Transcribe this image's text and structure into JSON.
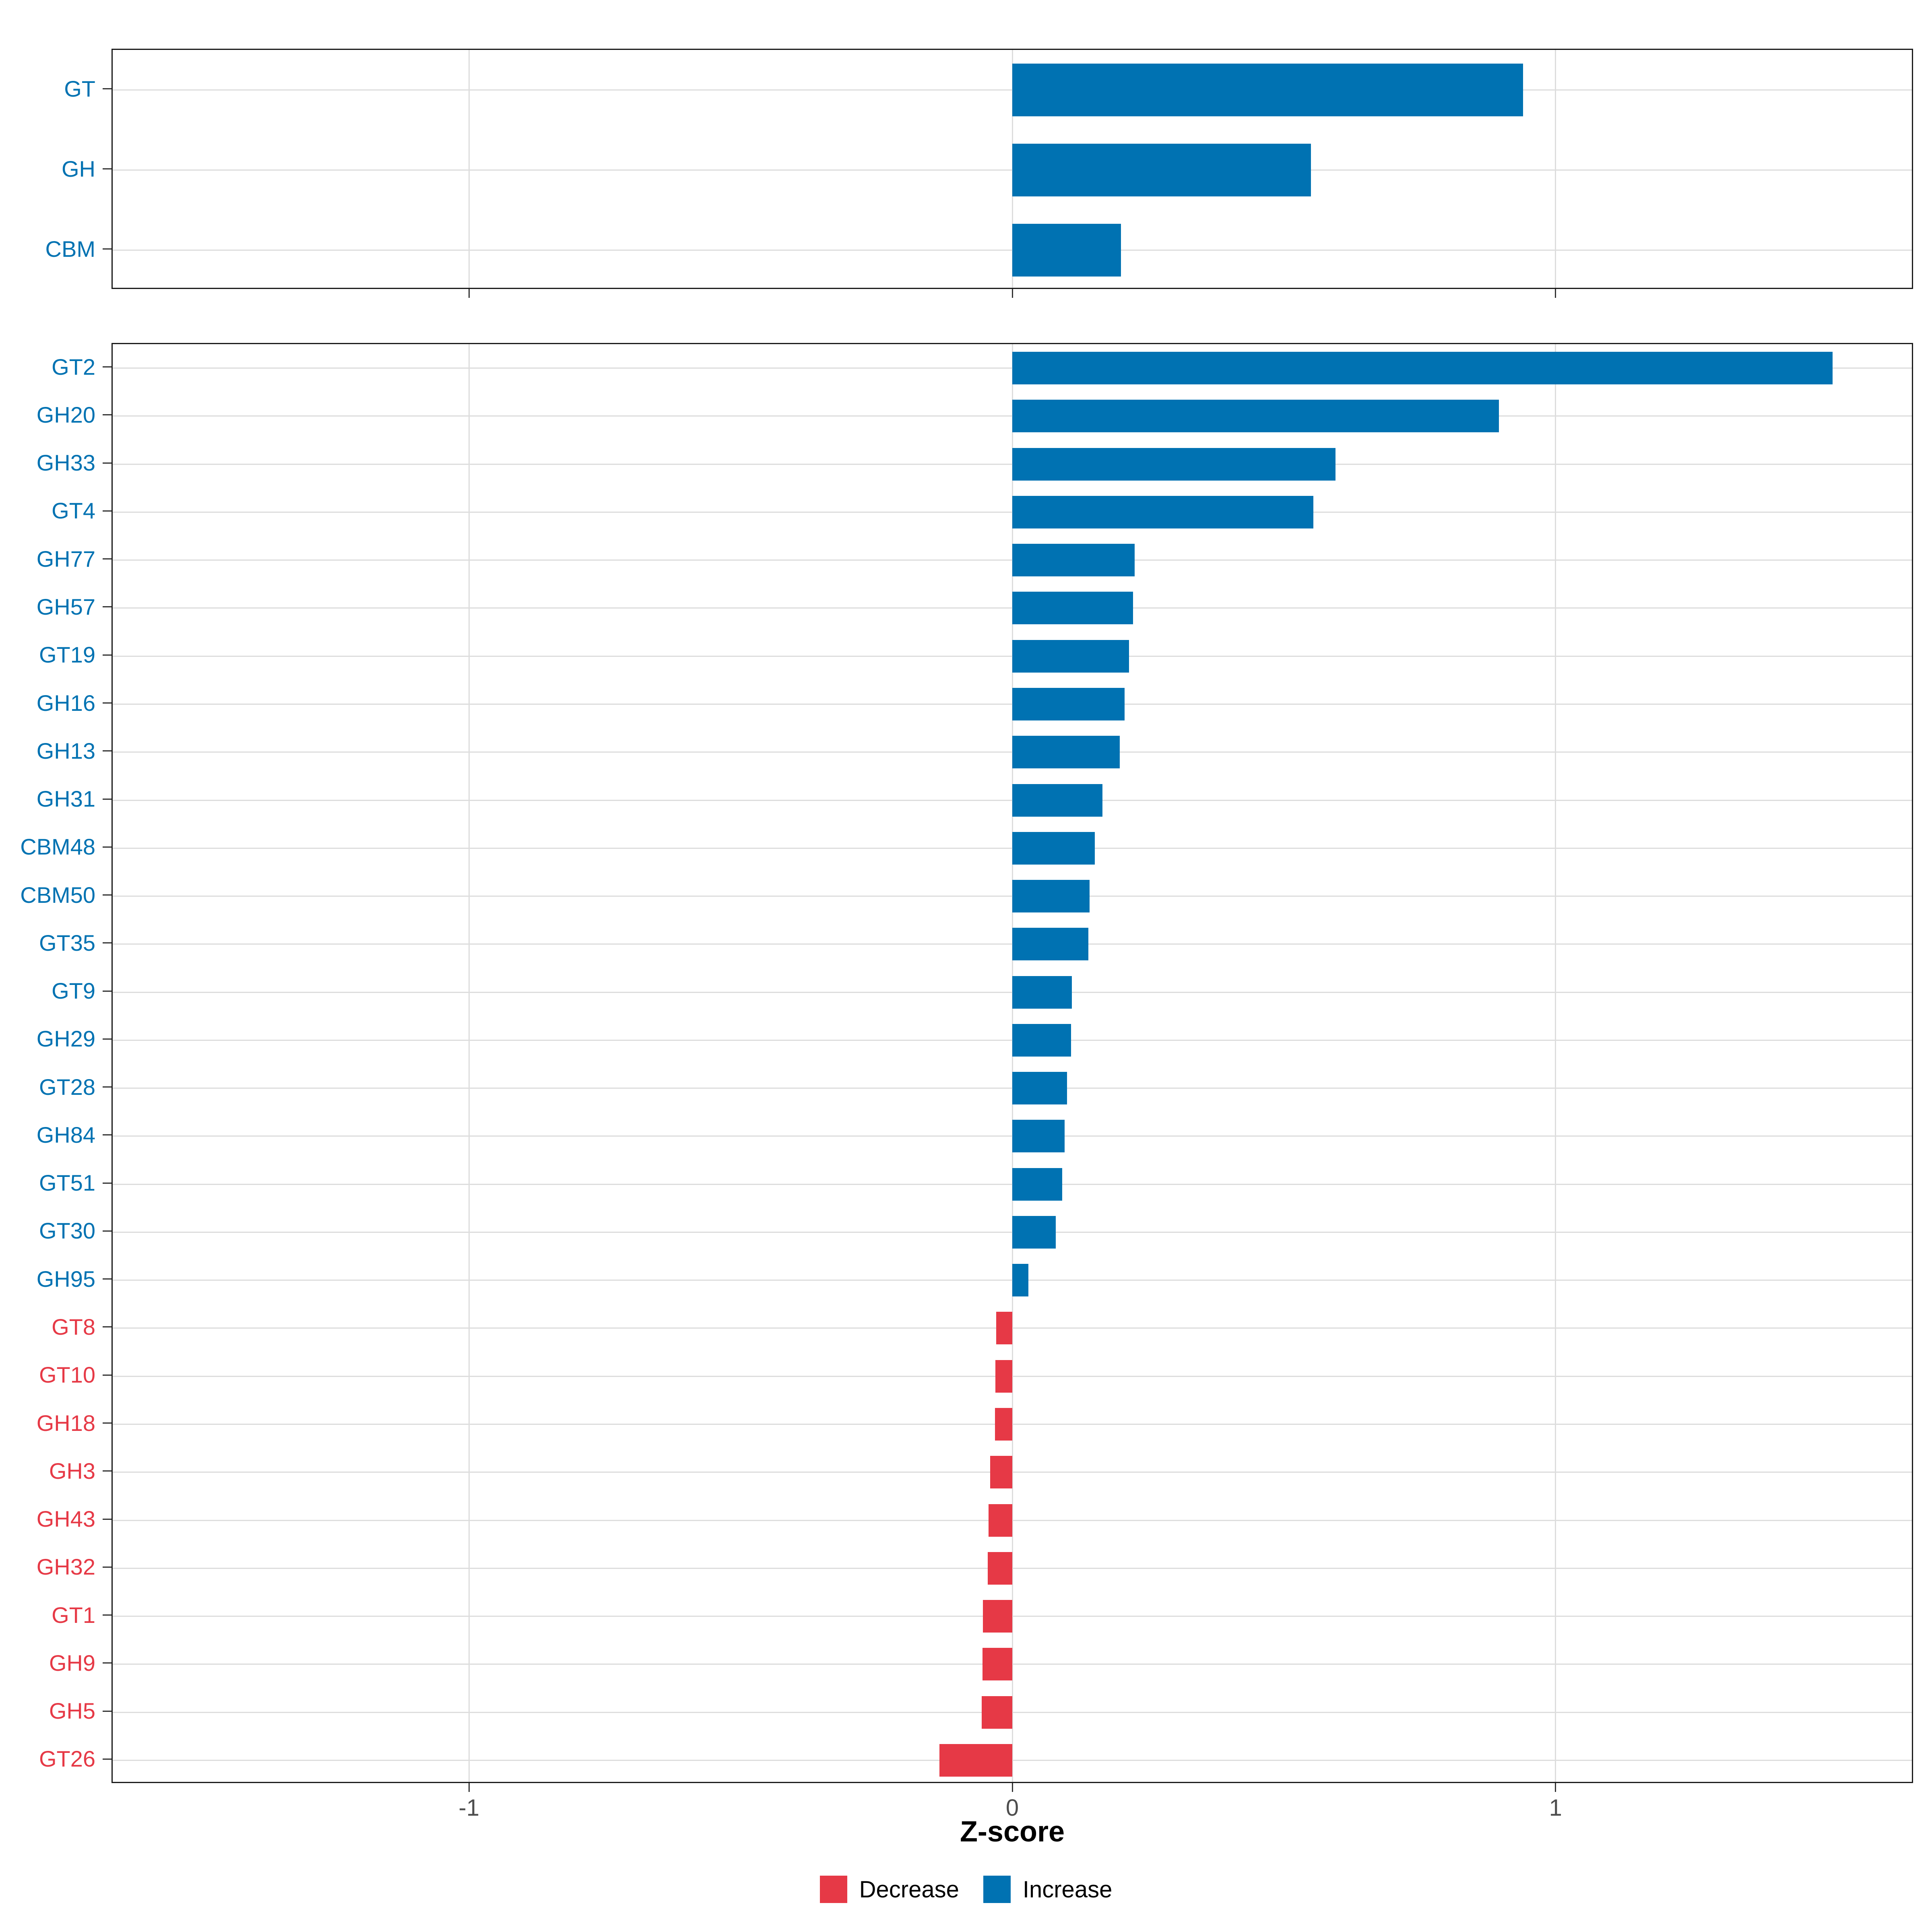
{
  "figure": {
    "xlabel": "Z-score",
    "x_tick_labels": [
      "-1",
      "0",
      "1"
    ],
    "legend": {
      "items": [
        {
          "label": "Decrease",
          "color": "#E63946"
        },
        {
          "label": "Increase",
          "color": "#0072B2"
        }
      ]
    }
  },
  "colors": {
    "increase": "#0072B2",
    "decrease": "#E63946",
    "grid": "#DDDDDD",
    "panel_border": "#1A1A1A",
    "tick_mark": "#333333",
    "tick_label": "#4D4D4D",
    "axis_title": "#000000"
  },
  "chart_data": [
    {
      "type": "bar",
      "orientation": "horizontal",
      "panel": "top",
      "title": "",
      "xlabel": "Z-score",
      "ylabel": "",
      "xlim": [
        -1.66,
        1.66
      ],
      "x_gridlines": [
        -1,
        0,
        1
      ],
      "grid": true,
      "legend_position": "bottom",
      "categories": [
        "GT",
        "GH",
        "CBM"
      ],
      "values": [
        0.94,
        0.55,
        0.2
      ]
    },
    {
      "type": "bar",
      "orientation": "horizontal",
      "panel": "bottom",
      "title": "",
      "xlabel": "Z-score",
      "ylabel": "",
      "xlim": [
        -1.66,
        1.66
      ],
      "x_gridlines": [
        -1,
        0,
        1
      ],
      "grid": true,
      "legend_position": "bottom",
      "categories": [
        "GT2",
        "GH20",
        "GH33",
        "GT4",
        "GH77",
        "GH57",
        "GT19",
        "GH16",
        "GH13",
        "GH31",
        "CBM48",
        "CBM50",
        "GT35",
        "GT9",
        "GH29",
        "GT28",
        "GH84",
        "GT51",
        "GT30",
        "GH95",
        "GT8",
        "GT10",
        "GH18",
        "GH3",
        "GH43",
        "GH32",
        "GT1",
        "GH9",
        "GH5",
        "GT26"
      ],
      "values": [
        1.51,
        0.896,
        0.595,
        0.554,
        0.225,
        0.222,
        0.215,
        0.207,
        0.198,
        0.166,
        0.152,
        0.142,
        0.14,
        0.11,
        0.108,
        0.101,
        0.096,
        0.092,
        0.08,
        0.03,
        -0.03,
        -0.031,
        -0.032,
        -0.041,
        -0.044,
        -0.045,
        -0.054,
        -0.055,
        -0.056,
        -0.134
      ]
    }
  ]
}
